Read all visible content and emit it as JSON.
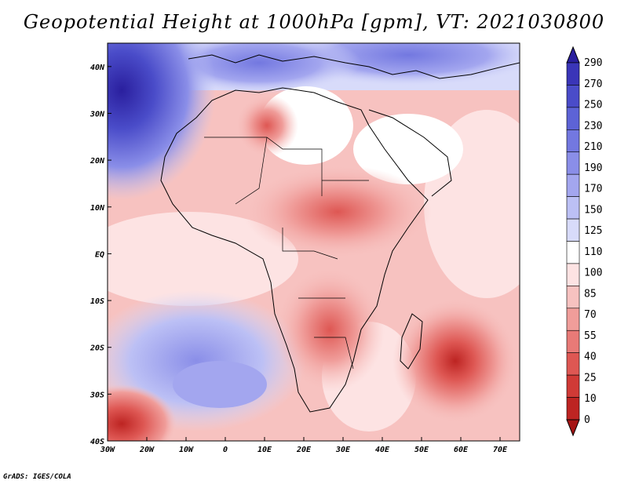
{
  "title": "Geopotential Height at 1000hPa [gpm], VT: 2021030800",
  "footer": "GrADS: IGES/COLA",
  "map": {
    "lat_labels": [
      "40N",
      "30N",
      "20N",
      "10N",
      "EQ",
      "10S",
      "20S",
      "30S",
      "40S"
    ],
    "lon_labels": [
      "30W",
      "20W",
      "10W",
      "0",
      "10E",
      "20E",
      "30E",
      "40E",
      "50E",
      "60E",
      "70E"
    ],
    "lon_range": [
      -30,
      75
    ],
    "lat_range": [
      -40,
      45
    ]
  },
  "colorbar": {
    "labels": [
      "290",
      "270",
      "250",
      "230",
      "210",
      "190",
      "170",
      "150",
      "125",
      "110",
      "100",
      "85",
      "70",
      "55",
      "40",
      "25",
      "10",
      "0"
    ],
    "colors": [
      "#2a1f9e",
      "#3a35b8",
      "#4a4cc9",
      "#5d63d6",
      "#7378e0",
      "#8a8ee8",
      "#a3a6ef",
      "#bcc0f5",
      "#d8dbfa",
      "#ffffff",
      "#fde3e3",
      "#f7c2c0",
      "#f09d9a",
      "#e87a77",
      "#de5753",
      "#d03a36",
      "#bd2422",
      "#a51414"
    ]
  }
}
